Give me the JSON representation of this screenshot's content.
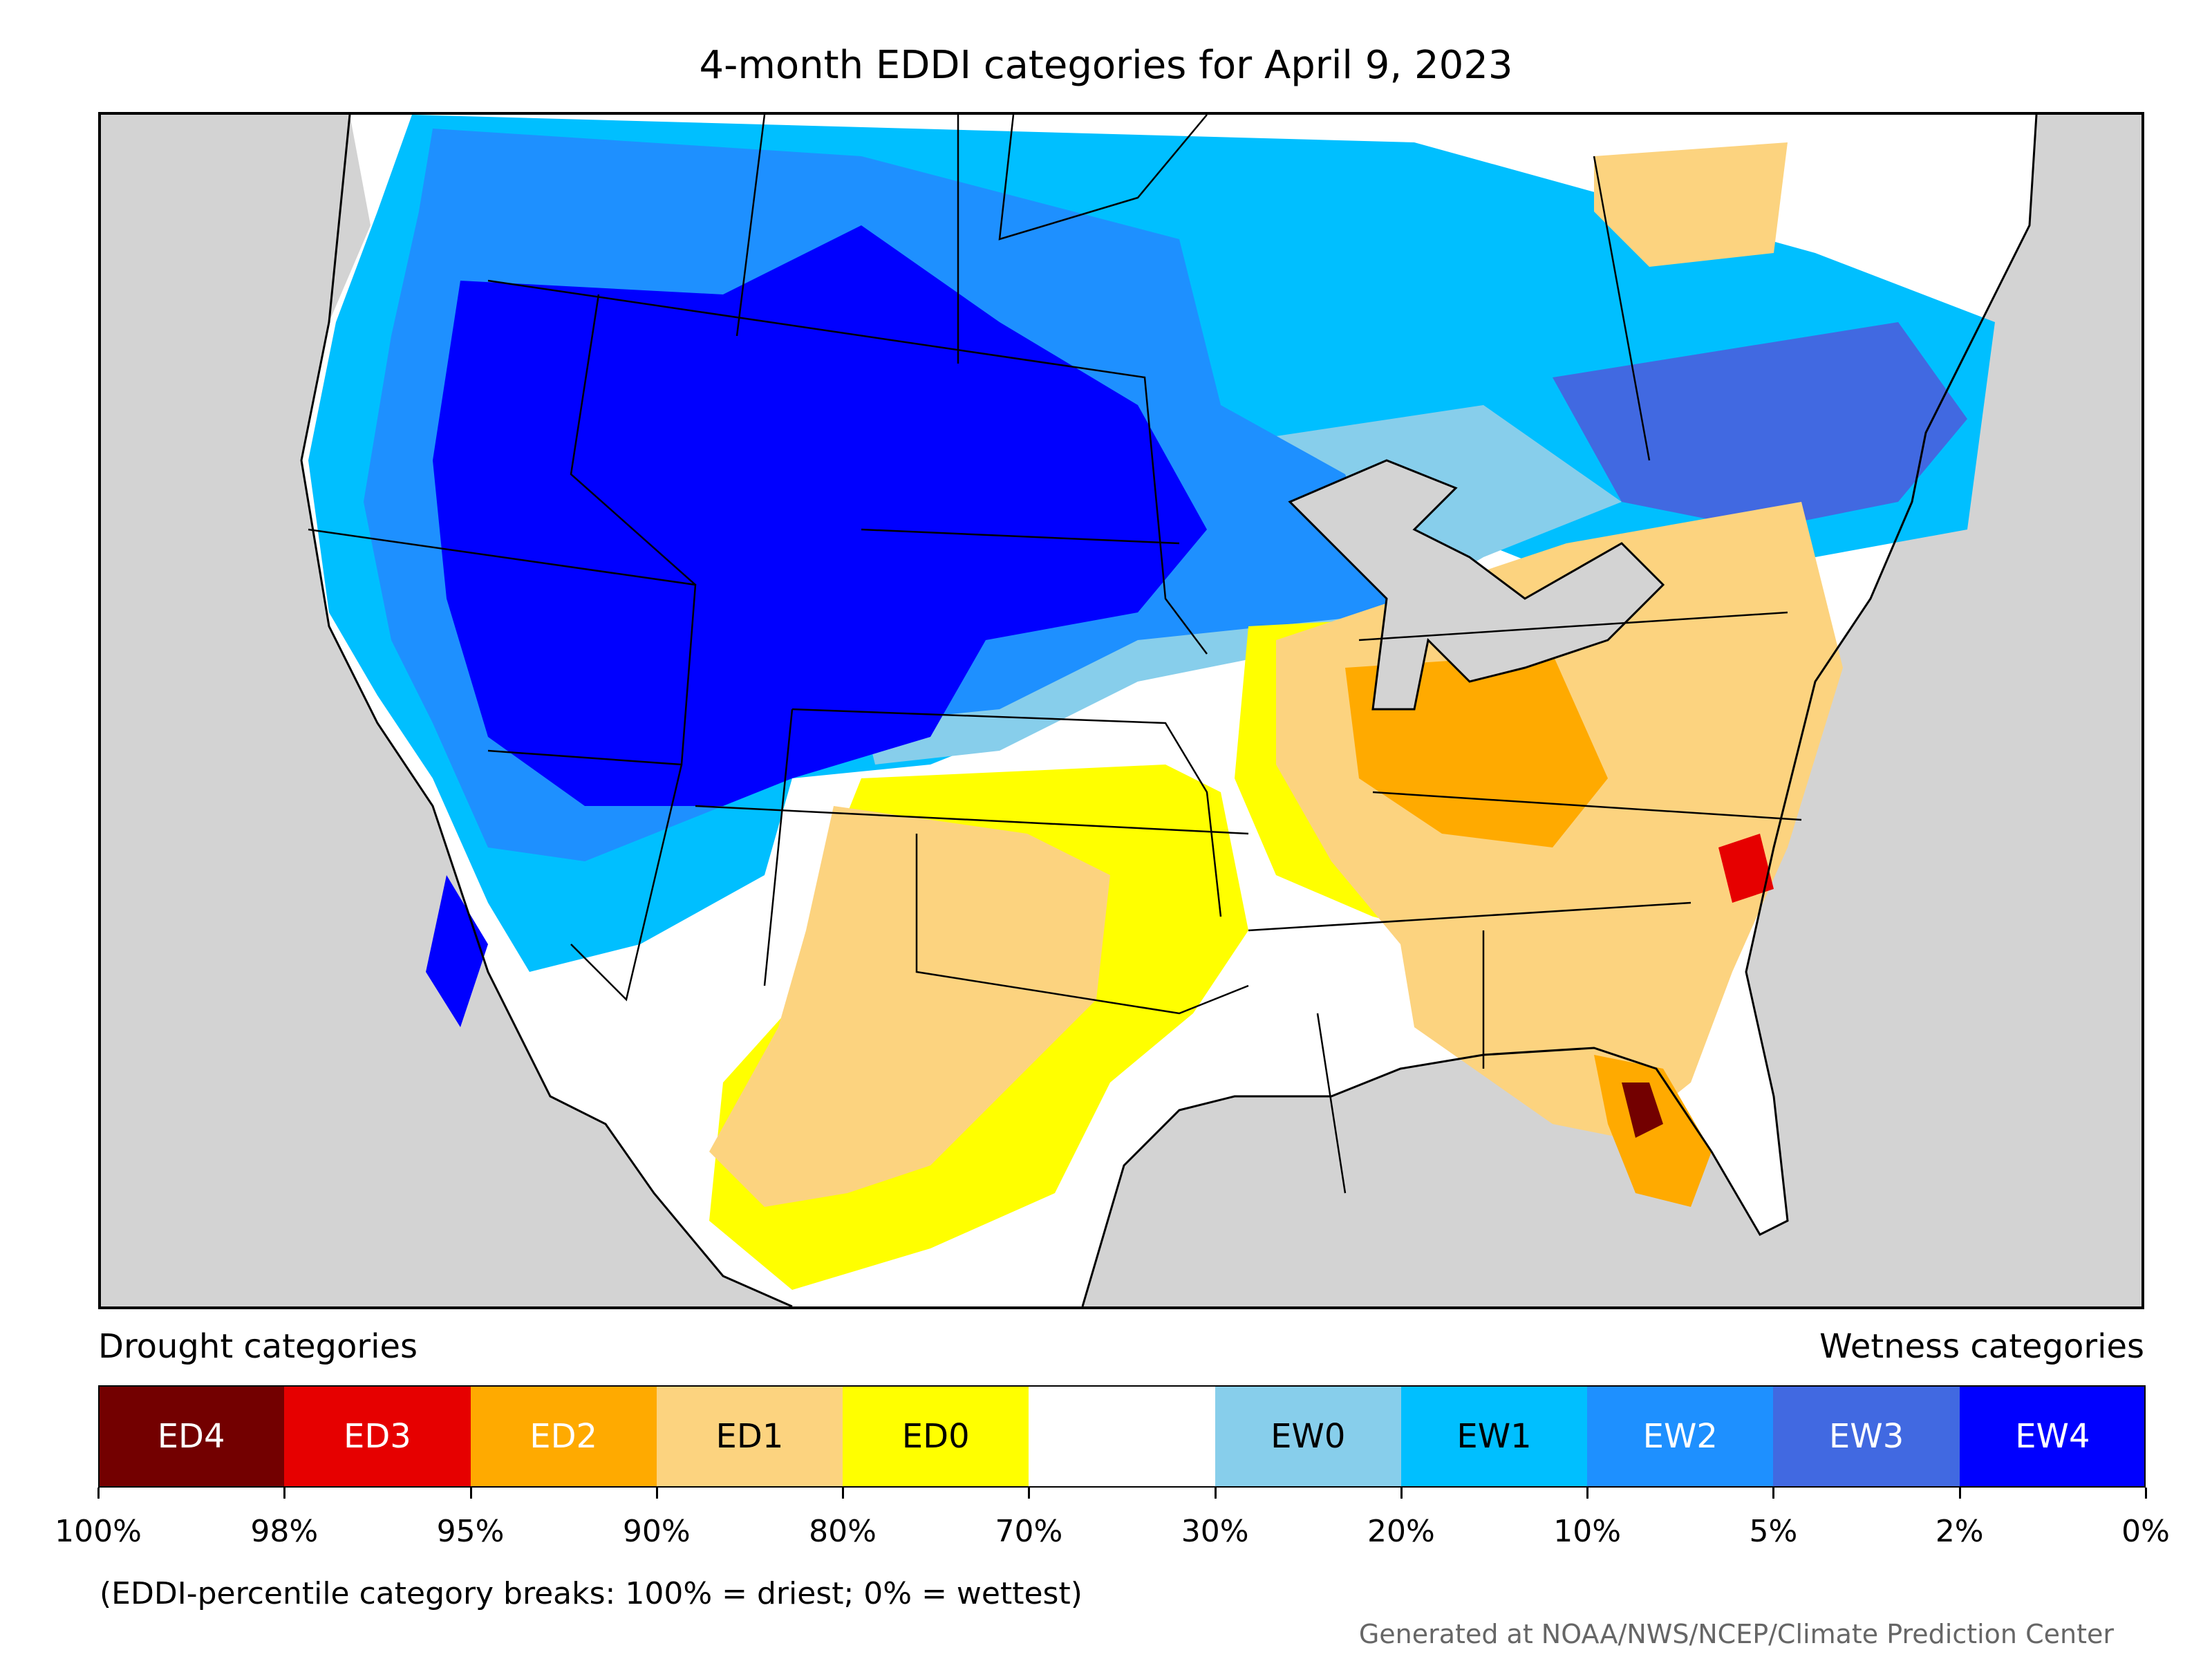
{
  "title": "4-month EDDI categories for April 9, 2023",
  "legend": {
    "drought_label": "Drought categories",
    "wetness_label": "Wetness categories",
    "categories": [
      {
        "label": "ED4",
        "color": "#730000",
        "text_color": "#ffffff"
      },
      {
        "label": "ED3",
        "color": "#e60000",
        "text_color": "#ffffff"
      },
      {
        "label": "ED2",
        "color": "#ffaa00",
        "text_color": "#ffffff"
      },
      {
        "label": "ED1",
        "color": "#fcd37f",
        "text_color": "#000000"
      },
      {
        "label": "ED0",
        "color": "#ffff00",
        "text_color": "#000000"
      },
      {
        "label": "",
        "color": "#ffffff",
        "text_color": "#000000"
      },
      {
        "label": "EW0",
        "color": "#87ceeb",
        "text_color": "#000000"
      },
      {
        "label": "EW1",
        "color": "#00bfff",
        "text_color": "#000000"
      },
      {
        "label": "EW2",
        "color": "#1e90ff",
        "text_color": "#ffffff"
      },
      {
        "label": "EW3",
        "color": "#4169e1",
        "text_color": "#ffffff"
      },
      {
        "label": "EW4",
        "color": "#0000ff",
        "text_color": "#ffffff"
      }
    ],
    "ticks": [
      "100%",
      "98%",
      "95%",
      "90%",
      "80%",
      "70%",
      "30%",
      "20%",
      "10%",
      "5%",
      "2%",
      "0%"
    ]
  },
  "footnote": "(EDDI-percentile category breaks: 100% = driest; 0% = wettest)",
  "credit": "Generated at NOAA/NWS/NCEP/Climate Prediction Center",
  "colors": {
    "ocean_bg": "#d3d3d3",
    "border": "#000000"
  }
}
